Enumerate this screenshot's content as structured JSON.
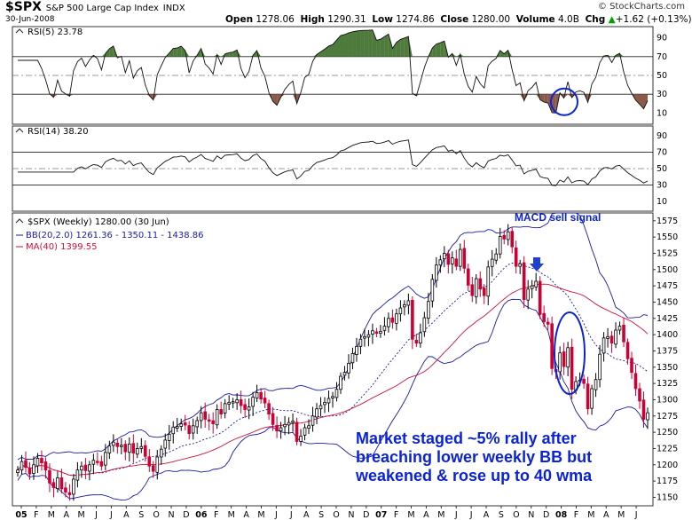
{
  "header": {
    "symbol": "$SPX",
    "name": "S&P 500 Large Cap Index",
    "exchange": "INDX",
    "date": "30-Jun-2008",
    "open_label": "Open",
    "open": "1278.06",
    "high_label": "High",
    "high": "1290.31",
    "low_label": "Low",
    "low": "1274.86",
    "close_label": "Close",
    "close": "1280.00",
    "volume_label": "Volume",
    "volume": "4.0B",
    "chg_label": "Chg",
    "chg": "+1.62 (+0.13%)",
    "brand": "© StockCharts.com",
    "arrow_color": "#00a000"
  },
  "panels": {
    "rsi5_label": "RSI(5) 23.78",
    "rsi14_label": "RSI(14) 38.20",
    "price_label": "$SPX (Weekly) 1280.00 (30 Jun)",
    "bb_label": "BB(20,2.0) 1261.36 - 1350.11 - 1438.86",
    "ma_label": "MA(40) 1399.55"
  },
  "annotations": {
    "macd": "MACD sell signal",
    "line1": "Market staged ~5% rally after",
    "line2": "breaching lower weekly BB but",
    "line3": "weakened & rose up to 40 wma",
    "color": "#0a23d6"
  },
  "colors": {
    "up": "#ffffff",
    "down": "#cc0033",
    "bb": "#1a1aa6",
    "ma": "#d0103a",
    "overbought": "#4e7a3c",
    "oversold": "#8c5a4a"
  },
  "chart_data": {
    "type": "line",
    "rsi_ticks": [
      "90",
      "70",
      "50",
      "30",
      "10"
    ],
    "price_ticks": [
      "1575",
      "1550",
      "1525",
      "1500",
      "1475",
      "1450",
      "1425",
      "1400",
      "1375",
      "1350",
      "1325",
      "1300",
      "1275",
      "1250",
      "1225",
      "1200",
      "1175",
      "1150"
    ],
    "x_labels": [
      "05",
      "F",
      "M",
      "A",
      "M",
      "J",
      "J",
      "A",
      "S",
      "O",
      "N",
      "D",
      "06",
      "F",
      "M",
      "A",
      "M",
      "J",
      "J",
      "A",
      "S",
      "O",
      "N",
      "D",
      "07",
      "F",
      "M",
      "A",
      "M",
      "J",
      "J",
      "A",
      "S",
      "O",
      "N",
      "D",
      "08",
      "F",
      "M",
      "A",
      "M",
      "J"
    ],
    "x_label_bold": [
      "05",
      "06",
      "07",
      "08"
    ],
    "rsi5_range": [
      0,
      100
    ],
    "rsi14_range": [
      0,
      100
    ],
    "price_range": [
      1137,
      1587
    ],
    "closes": [
      1192,
      1205,
      1196,
      1186,
      1200,
      1210,
      1203,
      1192,
      1172,
      1165,
      1180,
      1163,
      1158,
      1154,
      1178,
      1192,
      1198,
      1191,
      1200,
      1207,
      1205,
      1198,
      1219,
      1229,
      1235,
      1228,
      1230,
      1220,
      1232,
      1218,
      1225,
      1228,
      1213,
      1198,
      1190,
      1212,
      1224,
      1238,
      1247,
      1258,
      1259,
      1263,
      1261,
      1248,
      1260,
      1268,
      1280,
      1270,
      1267,
      1263,
      1285,
      1278,
      1294,
      1296,
      1297,
      1300,
      1291,
      1285,
      1289,
      1304,
      1311,
      1301,
      1295,
      1278,
      1262,
      1252,
      1257,
      1262,
      1265,
      1267,
      1236,
      1244,
      1257,
      1260,
      1275,
      1286,
      1291,
      1296,
      1302,
      1305,
      1316,
      1336,
      1342,
      1356,
      1371,
      1382,
      1393,
      1397,
      1400,
      1406,
      1402,
      1405,
      1413,
      1425,
      1419,
      1432,
      1441,
      1446,
      1452,
      1393,
      1387,
      1403,
      1426,
      1451,
      1485,
      1507,
      1515,
      1525,
      1508,
      1518,
      1505,
      1531,
      1502,
      1476,
      1460,
      1486,
      1470,
      1460,
      1504,
      1516,
      1524,
      1551,
      1547,
      1558,
      1535,
      1505,
      1509,
      1454,
      1470,
      1475,
      1482,
      1431,
      1420,
      1416,
      1348,
      1343,
      1372,
      1351,
      1380,
      1316,
      1328,
      1330,
      1325,
      1286,
      1317,
      1331,
      1370,
      1395,
      1397,
      1387,
      1407,
      1413,
      1389,
      1363,
      1342,
      1317,
      1298,
      1270,
      1280
    ]
  }
}
